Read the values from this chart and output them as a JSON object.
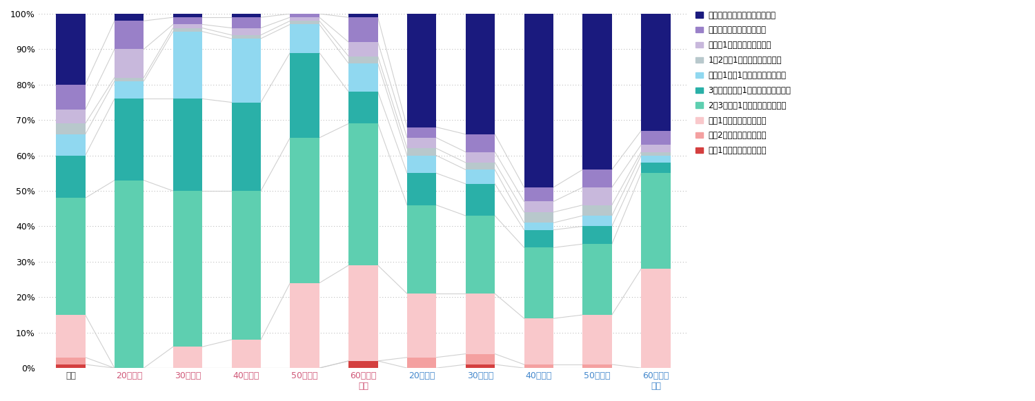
{
  "categories": [
    "全体",
    "20代女性",
    "30代女性",
    "40代女性",
    "50代女性",
    "60代以上\n女性",
    "20代男性",
    "30代男性",
    "40代男性",
    "50代男性",
    "60代以上\n男性"
  ],
  "series_labels": [
    "週に1回程度利用している",
    "月に2回程度利用している",
    "月に1回程度利用している",
    "2～3ヶ月に1回程度利用している",
    "3ヶ月～半年に1回程度利用している",
    "半年～1年に1回程度利用している",
    "1～2年に1回程度利用している",
    "数年に1回程度の利用頻度だ",
    "かつて利用したことがある",
    "まだ一度も利用したことがない"
  ],
  "colors": [
    "#d43f3f",
    "#f4a0a0",
    "#f9c8cb",
    "#5ecfb0",
    "#2ab0a8",
    "#90d8f0",
    "#b8c8cc",
    "#c8b8dc",
    "#9980c8",
    "#1a1a7e"
  ],
  "data": {
    "全体": [
      1,
      2,
      12,
      33,
      12,
      6,
      3,
      4,
      7,
      20
    ],
    "20代女性": [
      0,
      0,
      0,
      53,
      23,
      5,
      1,
      8,
      8,
      2
    ],
    "30代女性": [
      0,
      0,
      6,
      44,
      26,
      19,
      1,
      1,
      2,
      1
    ],
    "40代女性": [
      0,
      0,
      8,
      42,
      25,
      18,
      1,
      2,
      3,
      1
    ],
    "50代女性": [
      0,
      0,
      24,
      41,
      24,
      8,
      1,
      1,
      1,
      0
    ],
    "60代以上\n女性": [
      2,
      0,
      27,
      40,
      9,
      8,
      2,
      4,
      7,
      1
    ],
    "20代男性": [
      0,
      3,
      18,
      25,
      9,
      5,
      2,
      3,
      3,
      32
    ],
    "30代男性": [
      1,
      3,
      17,
      22,
      9,
      4,
      2,
      3,
      5,
      34
    ],
    "40代男性": [
      0,
      1,
      13,
      20,
      5,
      2,
      3,
      3,
      4,
      49
    ],
    "50代男性": [
      0,
      1,
      14,
      20,
      5,
      3,
      3,
      5,
      5,
      44
    ],
    "60代以上\n男性": [
      0,
      0,
      28,
      27,
      3,
      2,
      1,
      2,
      4,
      33
    ]
  },
  "background_color": "#ffffff",
  "line_color": "#c8c8c8",
  "female_label_color": "#d05878",
  "male_label_color": "#4488cc",
  "default_label_color": "#444444",
  "ylim": [
    0,
    100
  ],
  "yticks": [
    0,
    10,
    20,
    30,
    40,
    50,
    60,
    70,
    80,
    90,
    100
  ],
  "bar_width": 0.5,
  "figsize": [
    15.0,
    5.82
  ],
  "dpi": 100
}
